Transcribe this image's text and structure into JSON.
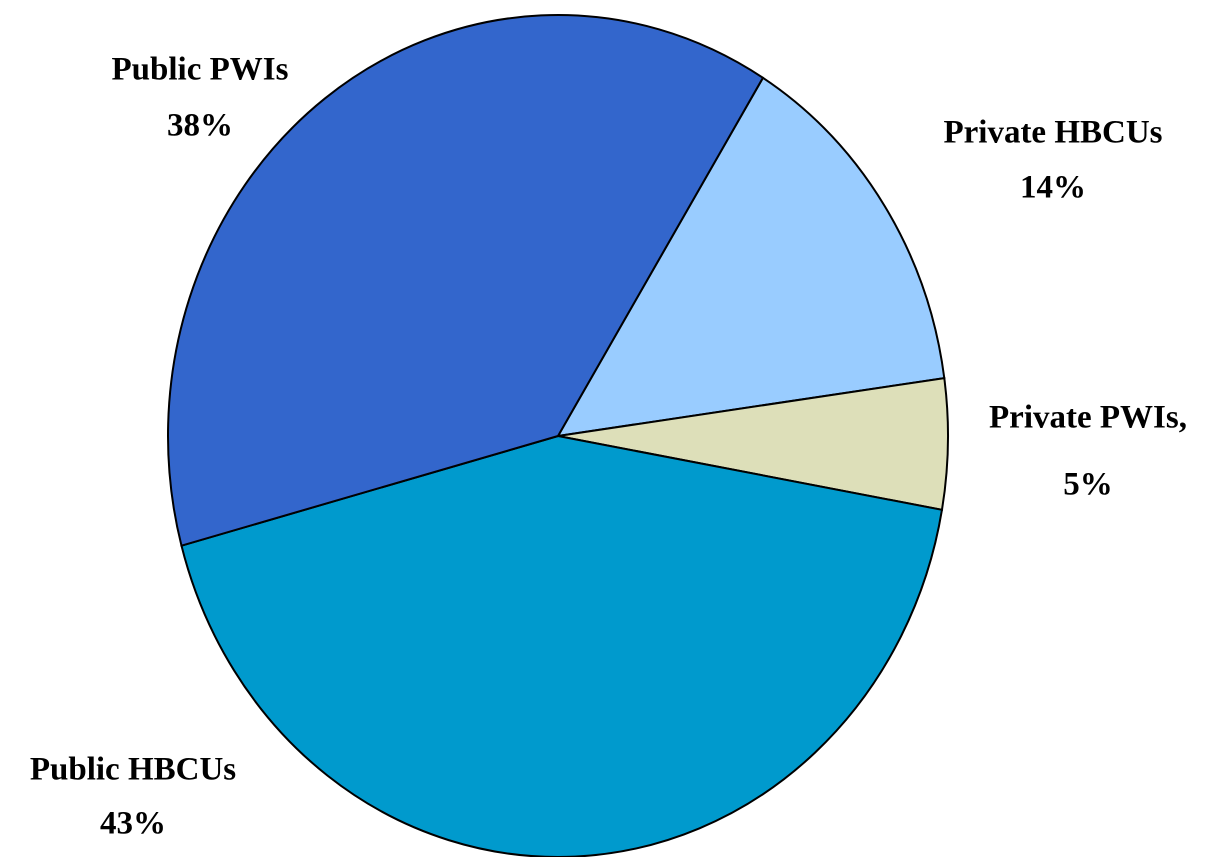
{
  "chart_data": {
    "type": "pie",
    "categories": [
      "Private HBCUs",
      "Private PWIs,",
      "Public HBCUs",
      "Public PWIs"
    ],
    "values": [
      14,
      5,
      43,
      38
    ],
    "value_labels": [
      "14%",
      "5%",
      "43%",
      "38%"
    ],
    "colors": [
      "#99ccff",
      "#dddfb9",
      "#009acd",
      "#3366cc"
    ]
  }
}
